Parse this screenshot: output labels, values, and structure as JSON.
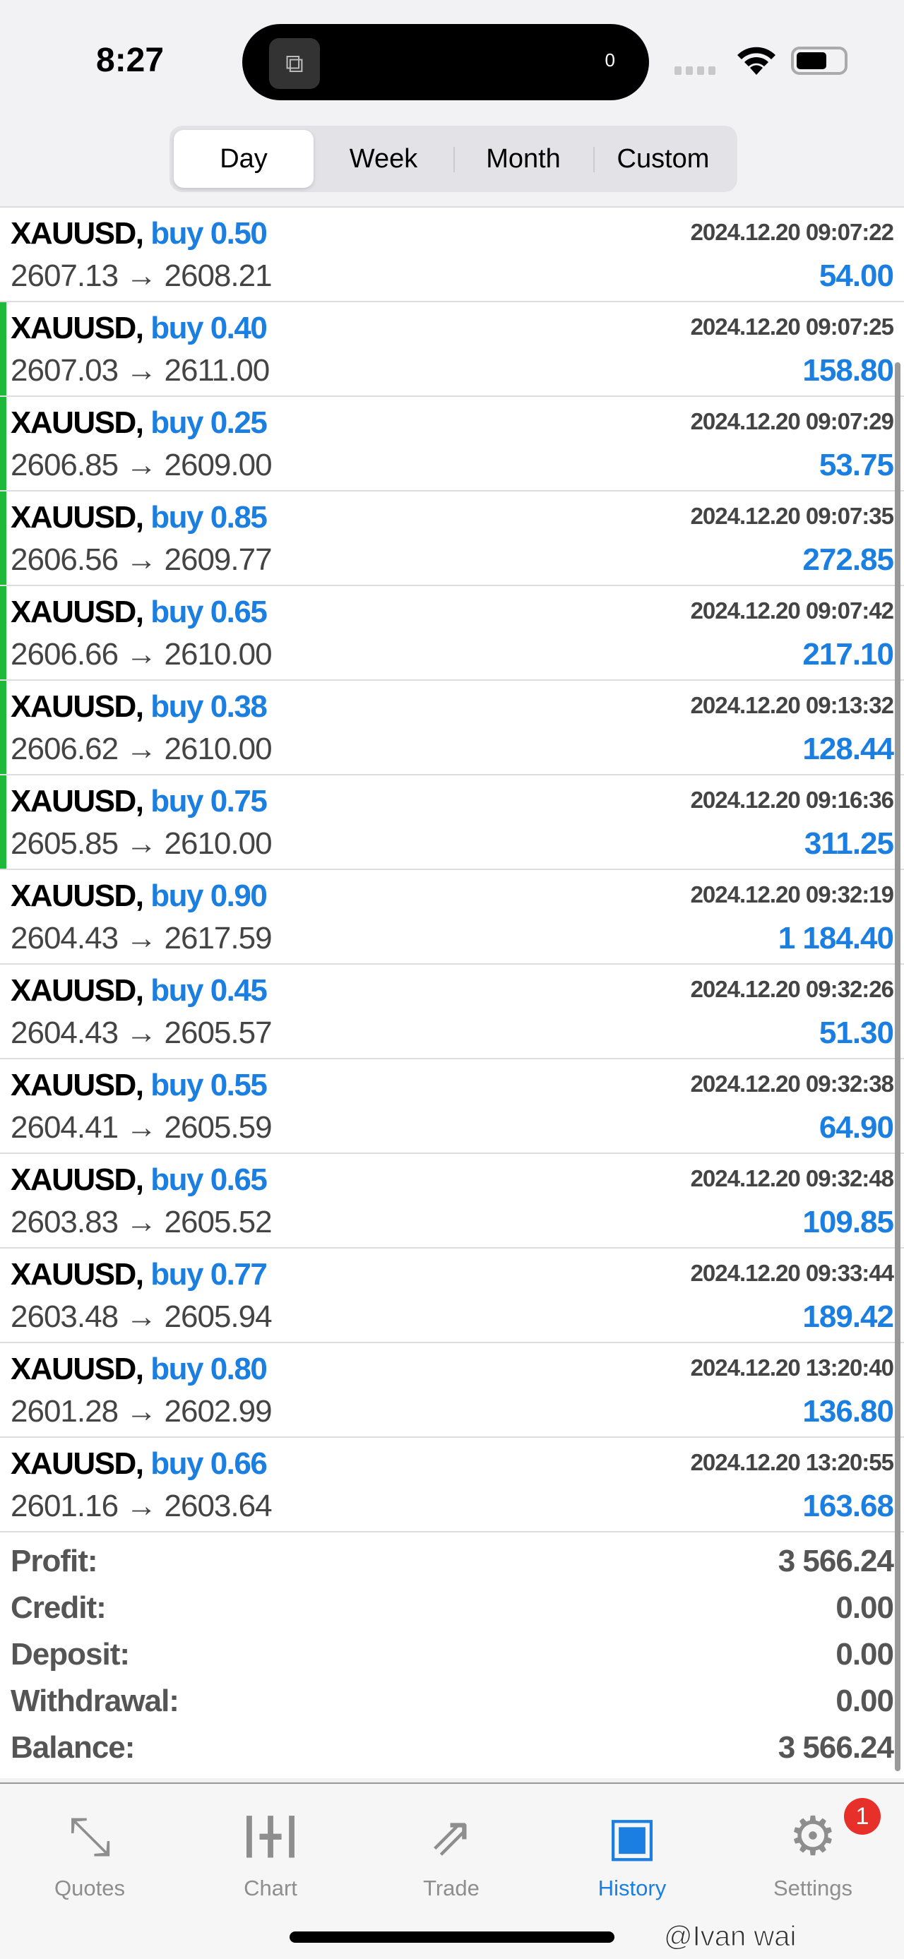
{
  "status": {
    "time": "8:27",
    "island_count": "0"
  },
  "segments": [
    {
      "label": "Day",
      "active": true
    },
    {
      "label": "Week"
    },
    {
      "label": "Month"
    },
    {
      "label": "Custom"
    }
  ],
  "colors": {
    "accent": "#1a7fe0",
    "profit_marker": "#1fb83a",
    "badge": "#e8302a"
  },
  "deals": [
    {
      "symbol": "XAUUSD,",
      "side": "buy 0.50",
      "time": "2024.12.20 09:07:22",
      "prices": "2607.13 → 2608.21",
      "profit": "54.00",
      "marker": false
    },
    {
      "symbol": "XAUUSD,",
      "side": "buy 0.40",
      "time": "2024.12.20 09:07:25",
      "prices": "2607.03 → 2611.00",
      "profit": "158.80",
      "marker": true
    },
    {
      "symbol": "XAUUSD,",
      "side": "buy 0.25",
      "time": "2024.12.20 09:07:29",
      "prices": "2606.85 → 2609.00",
      "profit": "53.75",
      "marker": true
    },
    {
      "symbol": "XAUUSD,",
      "side": "buy 0.85",
      "time": "2024.12.20 09:07:35",
      "prices": "2606.56 → 2609.77",
      "profit": "272.85",
      "marker": true
    },
    {
      "symbol": "XAUUSD,",
      "side": "buy 0.65",
      "time": "2024.12.20 09:07:42",
      "prices": "2606.66 → 2610.00",
      "profit": "217.10",
      "marker": true
    },
    {
      "symbol": "XAUUSD,",
      "side": "buy 0.38",
      "time": "2024.12.20 09:13:32",
      "prices": "2606.62 → 2610.00",
      "profit": "128.44",
      "marker": true
    },
    {
      "symbol": "XAUUSD,",
      "side": "buy 0.75",
      "time": "2024.12.20 09:16:36",
      "prices": "2605.85 → 2610.00",
      "profit": "311.25",
      "marker": true
    },
    {
      "symbol": "XAUUSD,",
      "side": "buy 0.90",
      "time": "2024.12.20 09:32:19",
      "prices": "2604.43 → 2617.59",
      "profit": "1 184.40",
      "marker": false
    },
    {
      "symbol": "XAUUSD,",
      "side": "buy 0.45",
      "time": "2024.12.20 09:32:26",
      "prices": "2604.43 → 2605.57",
      "profit": "51.30",
      "marker": false
    },
    {
      "symbol": "XAUUSD,",
      "side": "buy 0.55",
      "time": "2024.12.20 09:32:38",
      "prices": "2604.41 → 2605.59",
      "profit": "64.90",
      "marker": false
    },
    {
      "symbol": "XAUUSD,",
      "side": "buy 0.65",
      "time": "2024.12.20 09:32:48",
      "prices": "2603.83 → 2605.52",
      "profit": "109.85",
      "marker": false
    },
    {
      "symbol": "XAUUSD,",
      "side": "buy 0.77",
      "time": "2024.12.20 09:33:44",
      "prices": "2603.48 → 2605.94",
      "profit": "189.42",
      "marker": false
    },
    {
      "symbol": "XAUUSD,",
      "side": "buy 0.80",
      "time": "2024.12.20 13:20:40",
      "prices": "2601.28 → 2602.99",
      "profit": "136.80",
      "marker": false
    },
    {
      "symbol": "XAUUSD,",
      "side": "buy 0.66",
      "time": "2024.12.20 13:20:55",
      "prices": "2601.16 → 2603.64",
      "profit": "163.68",
      "marker": false
    }
  ],
  "summary": [
    {
      "label": "Profit:",
      "value": "3 566.24"
    },
    {
      "label": "Credit:",
      "value": "0.00"
    },
    {
      "label": "Deposit:",
      "value": "0.00"
    },
    {
      "label": "Withdrawal:",
      "value": "0.00"
    },
    {
      "label": "Balance:",
      "value": "3 566.24"
    }
  ],
  "tabs": [
    {
      "label": "Quotes",
      "icon": "quotes-arrows-icon"
    },
    {
      "label": "Chart",
      "icon": "candlestick-icon"
    },
    {
      "label": "Trade",
      "icon": "trend-arrow-icon"
    },
    {
      "label": "History",
      "icon": "inbox-tray-icon",
      "active": true
    },
    {
      "label": "Settings",
      "icon": "gear-icon",
      "badge": "1"
    }
  ],
  "watermark": "@Ivan wai"
}
